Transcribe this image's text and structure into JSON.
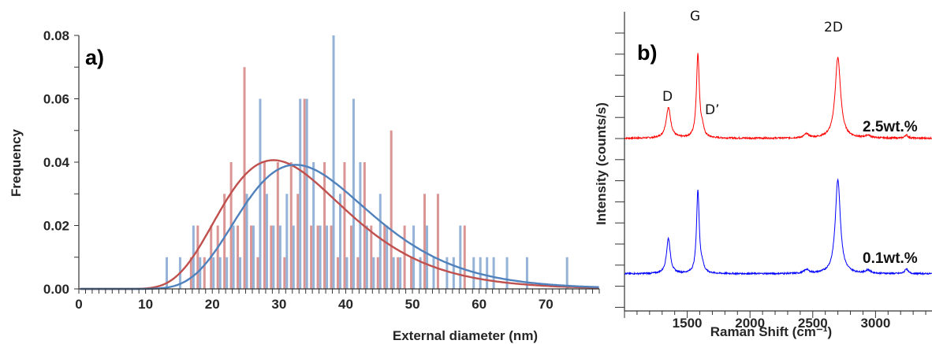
{
  "chart_data": [
    {
      "type": "bar",
      "panel_label": "a)",
      "xlabel": "External diameter (nm)",
      "ylabel": "Frequency",
      "xlim": [
        0,
        78
      ],
      "ylim": [
        0,
        0.08
      ],
      "x_ticks": [
        "0",
        "10",
        "20",
        "30",
        "40",
        "50",
        "60",
        "70"
      ],
      "y_ticks": [
        "0.00",
        "0.02",
        "0.04",
        "0.06",
        "0.08"
      ],
      "grid": false,
      "colors": {
        "red": "#c0504d",
        "blue": "#4f81bd",
        "red_bar": "#d99694",
        "blue_bar": "#95b3d7"
      },
      "series": [
        {
          "color": "#c0504d",
          "bars": [
            [
              17,
              0.01
            ],
            [
              18,
              0.02
            ],
            [
              19,
              0.01
            ],
            [
              20,
              0.02
            ],
            [
              21,
              0.02
            ],
            [
              22,
              0.03
            ],
            [
              23,
              0.04
            ],
            [
              24,
              0.02
            ],
            [
              25,
              0.07
            ],
            [
              26,
              0.02
            ],
            [
              27,
              0.01
            ],
            [
              28,
              0.04
            ],
            [
              29,
              0.02
            ],
            [
              30,
              0.04
            ],
            [
              31,
              0.01
            ],
            [
              32,
              0.04
            ],
            [
              33,
              0.03
            ],
            [
              34,
              0.06
            ],
            [
              35,
              0.02
            ],
            [
              36,
              0.02
            ],
            [
              37,
              0.04
            ],
            [
              38,
              0.02
            ],
            [
              39,
              0.01
            ],
            [
              40,
              0.04
            ],
            [
              41,
              0.02
            ],
            [
              42,
              0.01
            ],
            [
              43,
              0.04
            ],
            [
              44,
              0.02
            ],
            [
              45,
              0.01
            ],
            [
              46,
              0.02
            ],
            [
              47,
              0.05
            ],
            [
              48,
              0.01
            ],
            [
              49,
              0.02
            ],
            [
              50,
              0.01
            ],
            [
              52,
              0.03
            ],
            [
              54,
              0.03
            ],
            [
              58,
              0.02
            ]
          ],
          "fit_lognormal": {
            "mu": 3.475,
            "sigma": 0.32
          }
        },
        {
          "color": "#4f81bd",
          "bars": [
            [
              13,
              0.01
            ],
            [
              15,
              0.01
            ],
            [
              17,
              0.02
            ],
            [
              18,
              0.01
            ],
            [
              20,
              0.01
            ],
            [
              21,
              0.01
            ],
            [
              22,
              0.01
            ],
            [
              23,
              0.02
            ],
            [
              24,
              0.01
            ],
            [
              25,
              0.03
            ],
            [
              26,
              0.02
            ],
            [
              27,
              0.06
            ],
            [
              28,
              0.03
            ],
            [
              29,
              0.02
            ],
            [
              30,
              0.02
            ],
            [
              31,
              0.03
            ],
            [
              32,
              0.02
            ],
            [
              33,
              0.06
            ],
            [
              34,
              0.06
            ],
            [
              35,
              0.04
            ],
            [
              36,
              0.02
            ],
            [
              37,
              0.02
            ],
            [
              38,
              0.08
            ],
            [
              39,
              0.03
            ],
            [
              40,
              0.01
            ],
            [
              41,
              0.06
            ],
            [
              42,
              0.04
            ],
            [
              43,
              0.02
            ],
            [
              44,
              0.01
            ],
            [
              45,
              0.03
            ],
            [
              46,
              0.02
            ],
            [
              47,
              0.01
            ],
            [
              48,
              0.01
            ],
            [
              50,
              0.02
            ],
            [
              51,
              0.01
            ],
            [
              52,
              0.02
            ],
            [
              53,
              0.01
            ],
            [
              55,
              0.01
            ],
            [
              56,
              0.01
            ],
            [
              57,
              0.02
            ],
            [
              59,
              0.01
            ],
            [
              60,
              0.01
            ],
            [
              61,
              0.01
            ],
            [
              62,
              0.01
            ],
            [
              64,
              0.01
            ],
            [
              67,
              0.01
            ],
            [
              73,
              0.01
            ]
          ],
          "fit_lognormal": {
            "mu": 3.57,
            "sigma": 0.3
          }
        }
      ]
    },
    {
      "type": "line",
      "panel_label": "b)",
      "xlabel": "Raman Shift (cm⁻¹)",
      "ylabel": "Intensity (counts/s)",
      "xlim": [
        1000,
        3450
      ],
      "x_ticks": [
        "1500",
        "2000",
        "2500",
        "3000"
      ],
      "grid": false,
      "peak_labels": [
        "D",
        "G",
        "D’",
        "2D"
      ],
      "series": [
        {
          "name": "2.5wt.%",
          "color": "#ff0000",
          "baseline": 0.085,
          "peaks": [
            [
              1350,
              0.23,
              22
            ],
            [
              1585,
              0.63,
              14
            ],
            [
              1620,
              0.06,
              14
            ],
            [
              2450,
              0.03,
              22
            ],
            [
              2700,
              0.61,
              26
            ],
            [
              2940,
              0.02,
              24
            ],
            [
              3245,
              0.025,
              14
            ]
          ],
          "noise": 0.006
        },
        {
          "name": "0.1wt.%",
          "color": "#0000ff",
          "baseline": 0.045,
          "peaks": [
            [
              1350,
              0.28,
              18
            ],
            [
              1585,
              0.66,
              13
            ],
            [
              1620,
              0.05,
              14
            ],
            [
              2450,
              0.03,
              22
            ],
            [
              2700,
              0.75,
              24
            ],
            [
              2940,
              0.025,
              24
            ],
            [
              3245,
              0.04,
              14
            ]
          ],
          "noise": 0.006
        }
      ]
    }
  ]
}
